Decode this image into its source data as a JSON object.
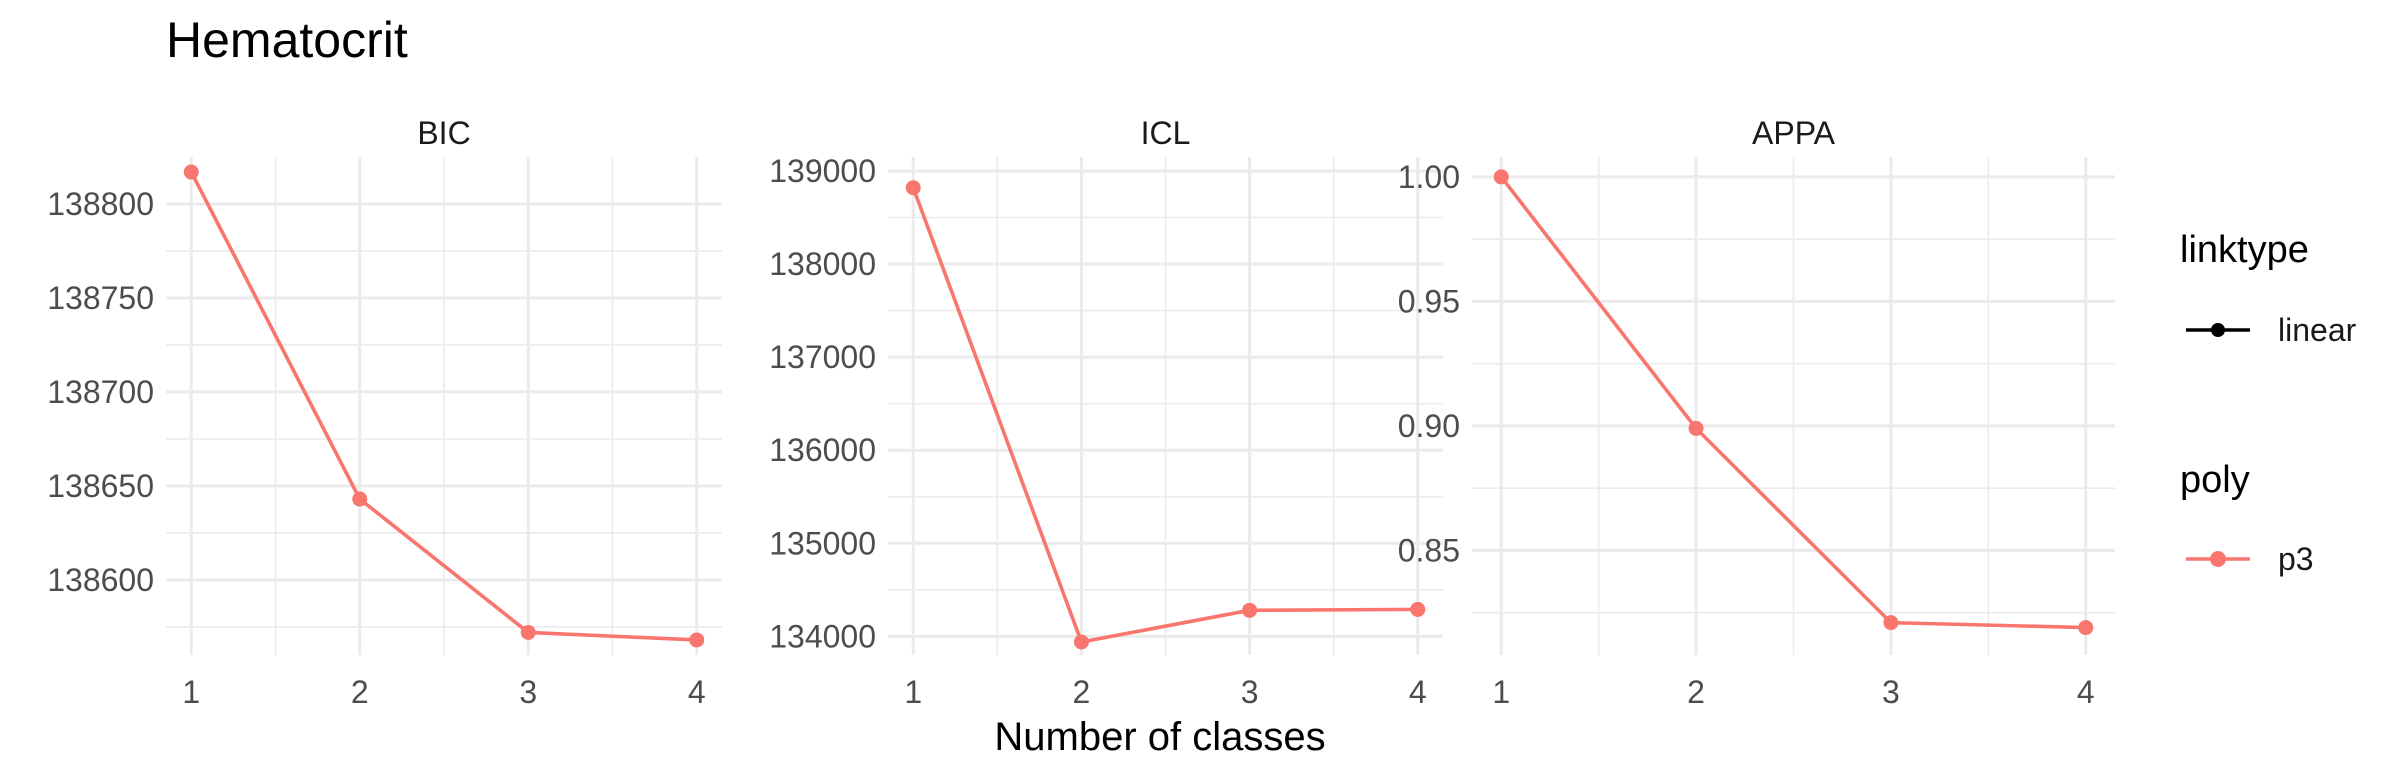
{
  "chart_data": {
    "type": "line",
    "title": "Hematocrit",
    "xlabel": "Number of classes",
    "x": [
      1,
      2,
      3,
      4
    ],
    "panels": [
      {
        "name": "BIC",
        "ylim": [
          138560,
          138825
        ],
        "yticks": [
          138600,
          138650,
          138700,
          138750,
          138800
        ],
        "ytick_labels": [
          "138600",
          "138650",
          "138700",
          "138750",
          "138800"
        ],
        "series": [
          {
            "name": "p3",
            "values": [
              138817,
              138643,
              138572,
              138568
            ]
          }
        ]
      },
      {
        "name": "ICL",
        "ylim": [
          133800,
          139150
        ],
        "yticks": [
          134000,
          135000,
          136000,
          137000,
          138000,
          139000
        ],
        "ytick_labels": [
          "134000",
          "135000",
          "136000",
          "137000",
          "138000",
          "139000"
        ],
        "series": [
          {
            "name": "p3",
            "values": [
              138820,
              133940,
              134280,
              134290
            ]
          }
        ]
      },
      {
        "name": "APPA",
        "ylim": [
          0.808,
          1.008
        ],
        "yticks": [
          0.85,
          0.9,
          0.95,
          1.0
        ],
        "ytick_labels": [
          "0.85",
          "0.90",
          "0.95",
          "1.00"
        ],
        "series": [
          {
            "name": "p3",
            "values": [
              1.0,
              0.899,
              0.821,
              0.819
            ]
          }
        ]
      }
    ],
    "legend": {
      "placement": "right",
      "groups": [
        {
          "title": "linktype",
          "entries": [
            {
              "label": "linear",
              "color": "#000000"
            }
          ]
        },
        {
          "title": "poly",
          "entries": [
            {
              "label": "p3",
              "color": "#F8766D"
            }
          ]
        }
      ]
    },
    "series_color": "#F8766D",
    "grid": true
  }
}
